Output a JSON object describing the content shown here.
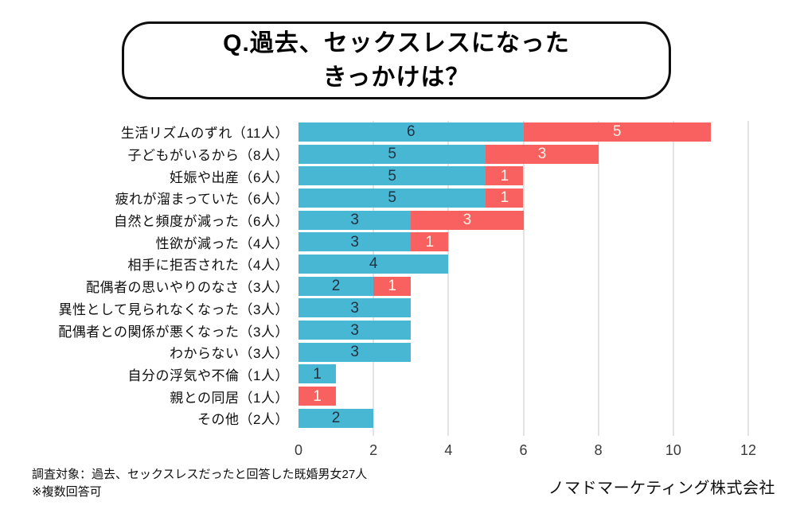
{
  "title": {
    "line1": "Q.過去、セックスレスになった",
    "line2": "きっかけは？"
  },
  "chart_data": {
    "type": "bar",
    "orientation": "horizontal",
    "stacked": true,
    "title": "Q.過去、セックスレスになったきっかけは？",
    "categories": [
      "生活リズムのずれ（11人）",
      "子どもがいるから（8人）",
      "妊娠や出産（6人）",
      "疲れが溜まっていた（6人）",
      "自然と頻度が減った（6人）",
      "性欲が減った（4人）",
      "相手に拒否された（4人）",
      "配偶者の思いやりのなさ（3人）",
      "異性として見られなくなった（3人）",
      "配偶者との関係が悪くなった（3人）",
      "わからない（3人）",
      "自分の浮気や不倫（1人）",
      "親との同居（1人）",
      "その他（2人）"
    ],
    "series": [
      {
        "id": "blue",
        "color": "#47b7d3",
        "label_color": "#233240",
        "values": [
          6,
          5,
          5,
          5,
          3,
          3,
          4,
          2,
          3,
          3,
          3,
          1,
          0,
          2
        ]
      },
      {
        "id": "red",
        "color": "#f96060",
        "label_color": "#fdf3e7",
        "values": [
          5,
          3,
          1,
          1,
          3,
          1,
          0,
          1,
          0,
          0,
          0,
          0,
          1,
          0
        ]
      }
    ],
    "totals": [
      11,
      8,
      6,
      6,
      6,
      4,
      4,
      3,
      3,
      3,
      3,
      1,
      1,
      2
    ],
    "xlim": [
      0,
      12
    ],
    "x_ticks": [
      0,
      2,
      4,
      6,
      8,
      10,
      12
    ],
    "grid_ticks": [
      2,
      4,
      6,
      8,
      10,
      12
    ],
    "grid": true,
    "legend": false,
    "value_labels": true
  },
  "footer": {
    "note_line1": "調査対象：過去、セックスレスだったと回答した既婚男女27人",
    "note_line2": "※複数回答可",
    "company": "ノマドマーケティング株式会社"
  },
  "colors": {
    "bar_blue": "#47b7d3",
    "bar_red": "#f96060",
    "gridline": "#e3e3e3",
    "tick_label": "#3a3a3a",
    "title_border": "#0d0d0d",
    "background": "#ffffff"
  }
}
